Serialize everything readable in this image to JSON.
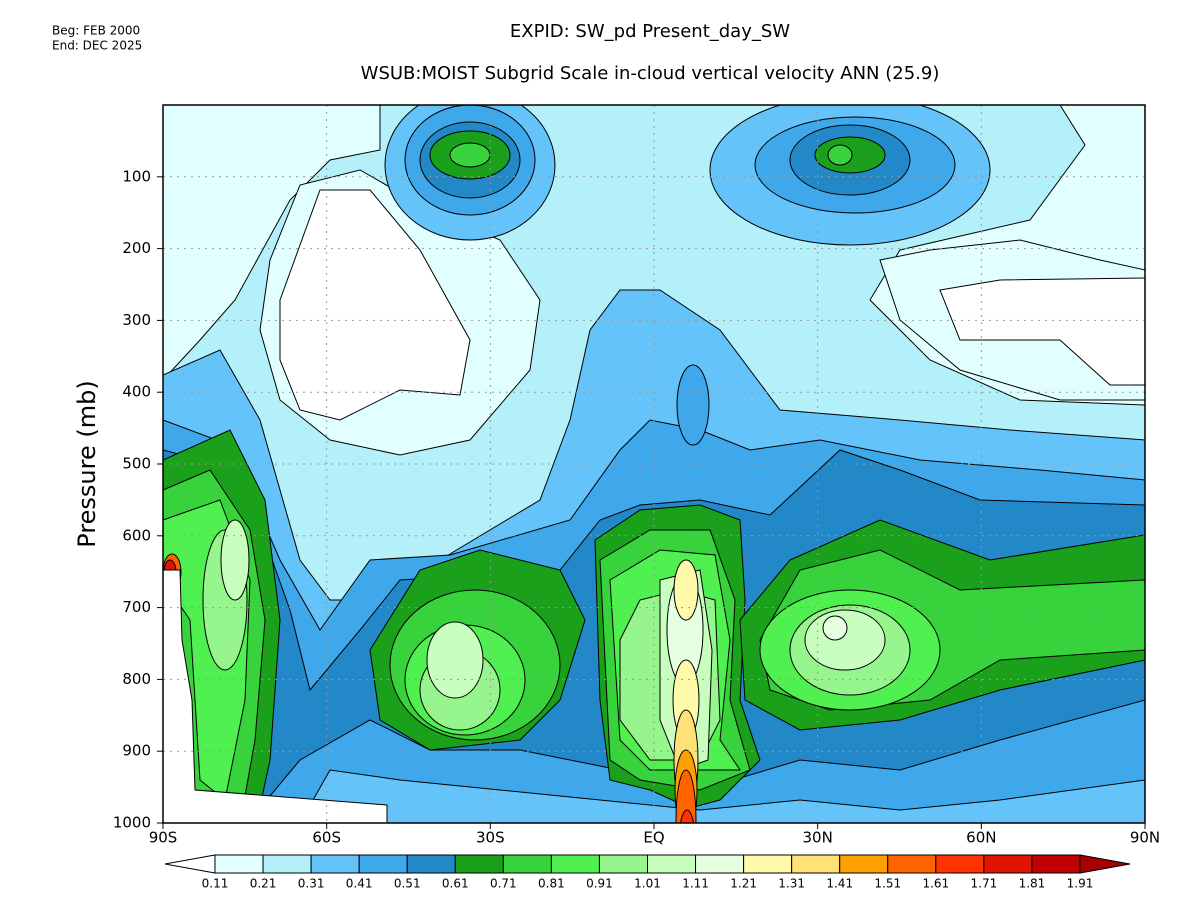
{
  "chart_data": {
    "type": "contour",
    "header": [
      "Beg: FEB 2000",
      "End: DEC 2025"
    ],
    "title": "EXPID: SW_pd  Present_day_SW",
    "subtitle": "WSUB:MOIST  Subgrid Scale in-cloud vertical velocity  ANN (25.9)",
    "ylabel": "Pressure (mb)",
    "xlim": [
      -90,
      90
    ],
    "xticks": [
      {
        "value": -90,
        "label": "90S"
      },
      {
        "value": -60,
        "label": "60S"
      },
      {
        "value": -30,
        "label": "30S"
      },
      {
        "value": 0,
        "label": "EQ"
      },
      {
        "value": 30,
        "label": "30N"
      },
      {
        "value": 60,
        "label": "60N"
      },
      {
        "value": 90,
        "label": "90N"
      }
    ],
    "ylim": [
      1000,
      0
    ],
    "yticks": [
      100,
      200,
      300,
      400,
      500,
      600,
      700,
      800,
      900,
      1000
    ],
    "grid": true,
    "colorbar": {
      "levels": [
        0.11,
        0.21,
        0.31,
        0.41,
        0.51,
        0.61,
        0.71,
        0.81,
        0.91,
        1.01,
        1.11,
        1.21,
        1.31,
        1.41,
        1.51,
        1.61,
        1.71,
        1.81,
        1.91
      ],
      "colors": [
        "#ffffff",
        "#e1ffff",
        "#b4f0fa",
        "#64c3f8",
        "#3ea8ea",
        "#2288c8",
        "#1aa01a",
        "#37d23c",
        "#50f050",
        "#96f58c",
        "#c8ffbe",
        "#e6ffe1",
        "#fffaaa",
        "#ffe178",
        "#ffa000",
        "#ff6400",
        "#ff3200",
        "#e11400",
        "#c00000",
        "#a50000"
      ]
    }
  }
}
